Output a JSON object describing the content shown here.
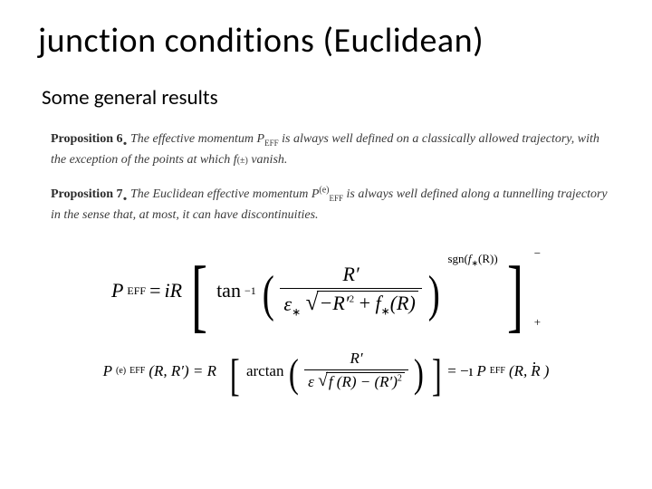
{
  "colors": {
    "text": "#000000",
    "prop_text": "#3a3a3a",
    "background": "#ffffff",
    "rule": "#000000"
  },
  "fonts": {
    "title_family": "Calibri",
    "body_family": "Georgia",
    "title_size_pt": 30,
    "subtitle_size_pt": 18,
    "prop_size_pt": 11,
    "eq1_size_pt": 17,
    "eq2_size_pt": 13
  },
  "title": "junction conditions (Euclidean)",
  "subtitle": "Some general results",
  "prop6": {
    "lead": "Proposition 6",
    "dot": ".",
    "text_a": "The effective momentum ",
    "peff": "P",
    "peff_sub": "EFF",
    "text_b": " is always well defined on a classically allowed trajectory, with the exception of the points at which ",
    "f": "f",
    "f_sub": "(±)",
    "text_c": " vanish."
  },
  "prop7": {
    "lead": "Proposition 7",
    "dot": ".",
    "text_a": "The Euclidean effective momentum ",
    "peff": "P",
    "peff_sup": "(e)",
    "peff_sub": "EFF",
    "text_b": " is always well defined along a tunnelling trajectory in the sense that, at most, it can have discontinuities."
  },
  "eq1": {
    "lhs": "P",
    "lhs_sub": "EFF",
    "eq": " = ",
    "iR": "iR",
    "tan": "tan",
    "tan_sup": "−1",
    "num": "R′",
    "eps": "ε",
    "eps_sub": "∗",
    "sqrt_inner_a": "−R′",
    "sqrt_inner_a_sup": "2",
    "plus": " + ",
    "f": "f",
    "f_sub": "∗",
    "fr": "(R)",
    "sgn": "sgn(",
    "sgn_f": "f",
    "sgn_f_sub": "∗",
    "sgn_r": "(R))",
    "outer_top": "−",
    "outer_bot": "+"
  },
  "eq2": {
    "lhs": "P",
    "lhs_sup": "(e)",
    "lhs_sub": "EFF",
    "args": "(R, R′) = R",
    "arctan": "arctan",
    "num": "R′",
    "eps": "ε",
    "sqrt_inner": "f (R) − (R′)",
    "sqrt_sup": "2",
    "eq": " = −ı",
    "rhs": "P",
    "rhs_sub": "EFF",
    "rhs_args_open": "(R, ",
    "rhs_R": "R",
    "rhs_args_close": ")"
  }
}
